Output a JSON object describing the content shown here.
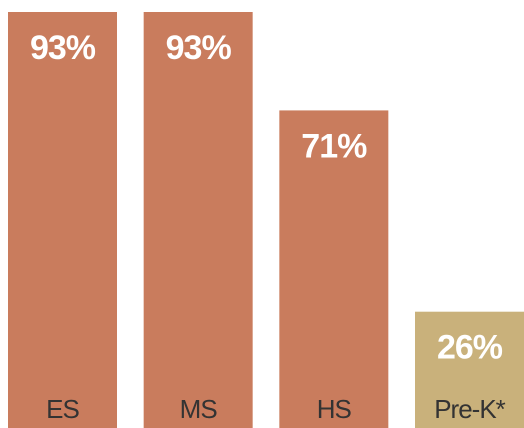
{
  "chart_data": {
    "type": "bar",
    "categories": [
      "ES",
      "MS",
      "HS",
      "Pre-K*"
    ],
    "values": [
      93,
      93,
      71,
      26
    ],
    "value_labels": [
      "93%",
      "93%",
      "71%",
      "26%"
    ],
    "colors": [
      "#c97c5d",
      "#c97c5d",
      "#c97c5d",
      "#c9b17b"
    ]
  }
}
